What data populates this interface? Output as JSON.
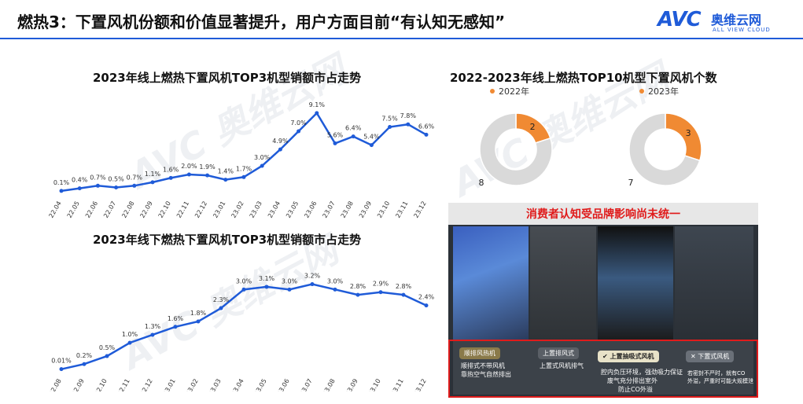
{
  "header": {
    "title": "燃热3：下置风机份额和价值显著提升，用户方面目前“有认知无感知”",
    "logo_avc": "AVC",
    "logo_cn": "奥维云网",
    "logo_en": "ALL VIEW CLOUD",
    "accent_color": "#1f5bd8"
  },
  "chart_data": [
    {
      "type": "line",
      "title": "2023年线上燃热下置风机TOP3机型销额市占走势",
      "categories": [
        "22.04",
        "22.05",
        "22.06",
        "22.07",
        "22.08",
        "22.09",
        "22.10",
        "22.11",
        "22.12",
        "23.01",
        "23.02",
        "23.03",
        "23.04",
        "23.05",
        "23.06",
        "23.07",
        "23.08",
        "23.09",
        "23.10",
        "23.11",
        "23.12"
      ],
      "values": [
        0.1,
        0.4,
        0.7,
        0.5,
        0.7,
        1.1,
        1.6,
        2.0,
        1.9,
        1.4,
        1.7,
        3.0,
        4.9,
        7.0,
        9.1,
        5.6,
        6.4,
        5.4,
        7.5,
        7.8,
        6.6
      ],
      "labels": [
        "0.1%",
        "0.4%",
        "0.7%",
        "0.5%",
        "0.7%",
        "1.1%",
        "1.6%",
        "2.0%",
        "1.9%",
        "1.4%",
        "1.7%",
        "3.0%",
        "4.9%",
        "7.0%",
        "9.1%",
        "5.6%",
        "6.4%",
        "5.4%",
        "7.5%",
        "7.8%",
        "6.6%"
      ],
      "ylim": [
        0,
        10
      ],
      "color": "#1f5bd8",
      "grid": false
    },
    {
      "type": "line",
      "title": "2023年线下燃热下置风机TOP3机型销额市占走势",
      "categories": [
        "22.08",
        "22.09",
        "22.10",
        "22.11",
        "22.12",
        "23.01",
        "23.02",
        "23.03",
        "23.04",
        "23.05",
        "23.06",
        "23.07",
        "23.08",
        "23.09",
        "23.10",
        "23.11",
        "23.12"
      ],
      "values": [
        0.01,
        0.2,
        0.5,
        1.0,
        1.3,
        1.6,
        1.8,
        2.3,
        3.0,
        3.1,
        3.0,
        3.2,
        3.0,
        2.8,
        2.9,
        2.8,
        2.4
      ],
      "labels": [
        "0.01%",
        "0.2%",
        "0.5%",
        "1.0%",
        "1.3%",
        "1.6%",
        "1.8%",
        "2.3%",
        "3.0%",
        "3.1%",
        "3.0%",
        "3.2%",
        "3.0%",
        "2.8%",
        "2.9%",
        "2.8%",
        "2.4%"
      ],
      "ylim": [
        0,
        3.6
      ],
      "color": "#1f5bd8",
      "grid": false
    },
    {
      "type": "pie",
      "title": "2022-2023年线上燃热TOP10机型下置风机个数",
      "donuts": [
        {
          "legend": "2022年",
          "slices": [
            {
              "value": 2,
              "color": "#f08a33"
            },
            {
              "value": 8,
              "color": "#d9d9d9"
            }
          ]
        },
        {
          "legend": "2023年",
          "slices": [
            {
              "value": 3,
              "color": "#f08a33"
            },
            {
              "value": 7,
              "color": "#d9d9d9"
            }
          ]
        }
      ]
    }
  ],
  "photo_panel": {
    "title": "消费者认知受品牌影响尚未统一",
    "title_color": "#e01b1b",
    "captions": {
      "left_tag_1": "顺排风热机",
      "left_tag_2": "上置排风式",
      "left_note_1": "顺排式不带风机",
      "left_note_2": "靠热空气自然排出",
      "left_note_3": "上置式风机排气",
      "center_tag": "上置抽吸式风机",
      "center_note_1": "腔内负压环境，强劲吸力保证",
      "center_note_2": "废气充分排出室外",
      "center_note_3": "防止CO外溢",
      "right_tag": "下置式风机",
      "right_note_1": "若密封不严时，就有CO",
      "right_note_2": "外溢，严重时可能大规模泄"
    }
  },
  "watermark": {
    "avc": "AVC",
    "cn": "奥维云网",
    "en": "ALL VIEW CLOUD"
  }
}
